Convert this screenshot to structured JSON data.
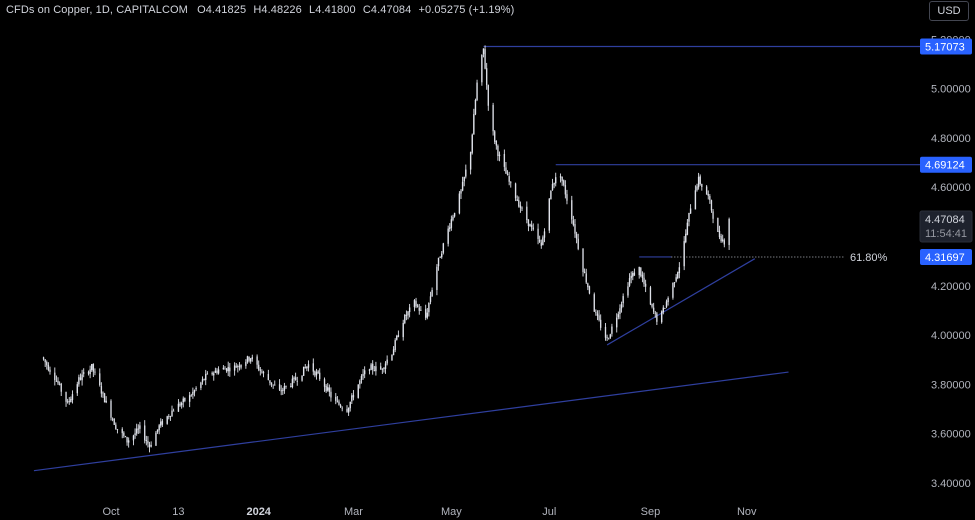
{
  "legend": {
    "symbol": "CFDs on Copper, 1D, CAPITALCOM",
    "open_label": "O",
    "open": "4.41825",
    "high_label": "H",
    "high": "4.48226",
    "low_label": "L",
    "low": "4.41800",
    "close_label": "C",
    "close": "4.47084",
    "change": "+0.05275 (+1.19%)"
  },
  "currency": "USD",
  "colors": {
    "background": "#000000",
    "candles": "#e0e3eb",
    "trendline": "#2f3f9e",
    "price_tag": "#2962ff",
    "current_tag": "#d1d4dc",
    "axis_text": "#b2b5be"
  },
  "chart_data": {
    "type": "candlestick",
    "y_axis": {
      "ticks": [
        "5.20000",
        "5.00000",
        "4.80000",
        "4.60000",
        "4.20000",
        "4.00000",
        "3.80000",
        "3.60000",
        "3.40000"
      ],
      "range": [
        3.38,
        5.23
      ]
    },
    "x_axis": {
      "ticks": [
        {
          "label": "Oct",
          "date": "2023-10-02",
          "bold": false
        },
        {
          "label": "13",
          "date": "2023-11-13",
          "bold": false
        },
        {
          "label": "2024",
          "date": "2024-01-02",
          "bold": true
        },
        {
          "label": "Mar",
          "date": "2024-03-01",
          "bold": false
        },
        {
          "label": "May",
          "date": "2024-05-01",
          "bold": false
        },
        {
          "label": "Jul",
          "date": "2024-07-01",
          "bold": false
        },
        {
          "label": "Sep",
          "date": "2024-09-02",
          "bold": false
        },
        {
          "label": "Nov",
          "date": "2024-11-01",
          "bold": false
        }
      ]
    },
    "price_path": [
      [
        "2023-08-20",
        3.91
      ],
      [
        "2023-08-28",
        3.83
      ],
      [
        "2023-09-05",
        3.72
      ],
      [
        "2023-09-12",
        3.82
      ],
      [
        "2023-09-20",
        3.87
      ],
      [
        "2023-09-28",
        3.74
      ],
      [
        "2023-10-05",
        3.63
      ],
      [
        "2023-10-12",
        3.57
      ],
      [
        "2023-10-20",
        3.62
      ],
      [
        "2023-10-26",
        3.55
      ],
      [
        "2023-11-01",
        3.63
      ],
      [
        "2023-11-10",
        3.7
      ],
      [
        "2023-11-20",
        3.75
      ],
      [
        "2023-11-30",
        3.83
      ],
      [
        "2023-12-08",
        3.86
      ],
      [
        "2023-12-18",
        3.87
      ],
      [
        "2023-12-28",
        3.91
      ],
      [
        "2024-01-05",
        3.84
      ],
      [
        "2024-01-15",
        3.77
      ],
      [
        "2024-01-25",
        3.82
      ],
      [
        "2024-02-02",
        3.88
      ],
      [
        "2024-02-10",
        3.82
      ],
      [
        "2024-02-18",
        3.73
      ],
      [
        "2024-02-26",
        3.7
      ],
      [
        "2024-03-04",
        3.8
      ],
      [
        "2024-03-10",
        3.87
      ],
      [
        "2024-03-18",
        3.86
      ],
      [
        "2024-03-25",
        3.93
      ],
      [
        "2024-04-01",
        4.06
      ],
      [
        "2024-04-08",
        4.13
      ],
      [
        "2024-04-15",
        4.07
      ],
      [
        "2024-04-22",
        4.28
      ],
      [
        "2024-04-30",
        4.45
      ],
      [
        "2024-05-07",
        4.58
      ],
      [
        "2024-05-13",
        4.75
      ],
      [
        "2024-05-17",
        5.02
      ],
      [
        "2024-05-21",
        5.16
      ],
      [
        "2024-05-25",
        4.87
      ],
      [
        "2024-05-30",
        4.74
      ],
      [
        "2024-06-06",
        4.62
      ],
      [
        "2024-06-13",
        4.52
      ],
      [
        "2024-06-20",
        4.43
      ],
      [
        "2024-06-26",
        4.36
      ],
      [
        "2024-07-03",
        4.62
      ],
      [
        "2024-07-08",
        4.65
      ],
      [
        "2024-07-15",
        4.48
      ],
      [
        "2024-07-22",
        4.27
      ],
      [
        "2024-07-30",
        4.08
      ],
      [
        "2024-08-06",
        3.98
      ],
      [
        "2024-08-12",
        4.08
      ],
      [
        "2024-08-20",
        4.23
      ],
      [
        "2024-08-26",
        4.27
      ],
      [
        "2024-09-02",
        4.12
      ],
      [
        "2024-09-07",
        4.05
      ],
      [
        "2024-09-14",
        4.17
      ],
      [
        "2024-09-21",
        4.3
      ],
      [
        "2024-09-28",
        4.56
      ],
      [
        "2024-10-02",
        4.63
      ],
      [
        "2024-10-08",
        4.56
      ],
      [
        "2024-10-14",
        4.41
      ],
      [
        "2024-10-18",
        4.38
      ],
      [
        "2024-10-21",
        4.47
      ]
    ],
    "horizontal_levels": [
      {
        "price": 5.17073,
        "label": "5.17073",
        "from": "2024-05-21"
      },
      {
        "price": 4.69124,
        "label": "4.69124",
        "from": "2024-07-05"
      },
      {
        "price": 4.31697,
        "label": "4.31697",
        "from": "2024-08-26",
        "dotted_from": "2024-09-15",
        "annotation": "61.80%"
      }
    ],
    "trendlines": [
      {
        "from": [
          "2023-08-15",
          3.45
        ],
        "to": [
          "2024-11-27",
          3.85
        ]
      },
      {
        "from": [
          "2024-08-06",
          3.96
        ],
        "to": [
          "2024-11-06",
          4.31
        ]
      }
    ],
    "current_price": {
      "price": 4.47084,
      "label": "4.47084",
      "countdown": "11:54:41"
    }
  }
}
